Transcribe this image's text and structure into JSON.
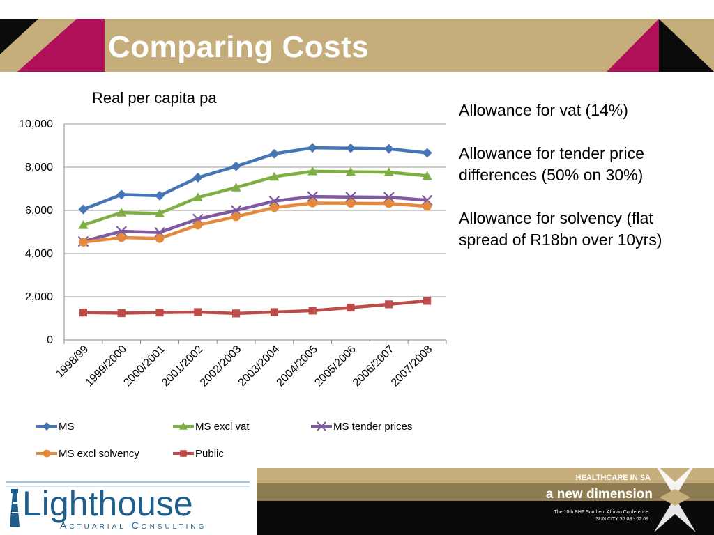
{
  "slide": {
    "title": "Comparing Costs"
  },
  "colors": {
    "banner_tan": "#C6AE7C",
    "banner_black": "#0B0B0B",
    "banner_magenta": "#B01059",
    "footer_black": "#0A0A0A",
    "footer_tan": "#C6AE7C",
    "logo_blue": "#1E5E8C"
  },
  "notes": [
    "Allowance for vat (14%)",
    "Allowance for tender price differences (50% on 30%)",
    "Allowance for solvency (flat spread of R18bn over 10yrs)"
  ],
  "chart_data": {
    "type": "line",
    "title": "Real per capita pa",
    "xlabel": "",
    "ylabel": "",
    "ylim": [
      0,
      10000
    ],
    "yticks": [
      0,
      2000,
      4000,
      6000,
      8000,
      10000
    ],
    "ytick_labels": [
      "0",
      "2,000",
      "4,000",
      "6,000",
      "8,000",
      "10,000"
    ],
    "grid": true,
    "legend_position": "bottom",
    "categories": [
      "1998/99",
      "1999/2000",
      "2000/2001",
      "2001/2002",
      "2002/2003",
      "2003/2004",
      "2004/2005",
      "2005/2006",
      "2006/2007",
      "2007/2008"
    ],
    "series": [
      {
        "name": "MS",
        "color": "#4575B4",
        "marker": "diamond",
        "values": [
          6050,
          6730,
          6680,
          7520,
          8040,
          8620,
          8900,
          8880,
          8850,
          8660
        ]
      },
      {
        "name": "MS excl vat",
        "color": "#7FAE45",
        "marker": "triangle",
        "values": [
          5320,
          5900,
          5860,
          6600,
          7060,
          7560,
          7810,
          7790,
          7770,
          7600
        ]
      },
      {
        "name": "MS tender prices",
        "color": "#7E5B9F",
        "marker": "x",
        "values": [
          4560,
          5030,
          4980,
          5600,
          6000,
          6430,
          6640,
          6620,
          6610,
          6470
        ]
      },
      {
        "name": "MS excl solvency",
        "color": "#E58A3C",
        "marker": "circle",
        "values": [
          4530,
          4740,
          4700,
          5320,
          5710,
          6130,
          6340,
          6330,
          6320,
          6190
        ]
      },
      {
        "name": "Public",
        "color": "#BD4B47",
        "marker": "square",
        "values": [
          1270,
          1240,
          1270,
          1290,
          1230,
          1290,
          1360,
          1500,
          1650,
          1810
        ]
      }
    ]
  },
  "footer": {
    "logo_word": "Lighthouse",
    "logo_sub": "Actuarial Consulting",
    "tagline_top": "HEALTHCARE IN SA",
    "tagline_main": "a new dimension",
    "conference": "The 10th BHF Southern African Conference",
    "venue": "SUN CITY 30.08 - 02.09"
  }
}
